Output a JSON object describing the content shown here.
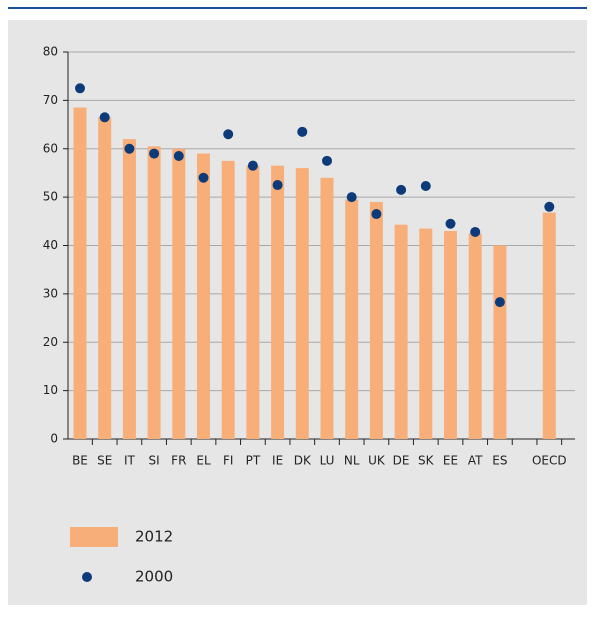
{
  "chart_data": {
    "type": "bar",
    "categories": [
      "BE",
      "SE",
      "IT",
      "SI",
      "FR",
      "EL",
      "FI",
      "PT",
      "IE",
      "DK",
      "LU",
      "NL",
      "UK",
      "DE",
      "SK",
      "EE",
      "AT",
      "ES",
      null,
      "OECD"
    ],
    "series": [
      {
        "name": "2012",
        "color": "#f7ae78",
        "type": "bar",
        "values": [
          68.5,
          66.5,
          62,
          60.5,
          60,
          59,
          57.5,
          56.5,
          56.5,
          56,
          54,
          49.5,
          49,
          44.3,
          43.5,
          43,
          42.5,
          40,
          null,
          46.8
        ]
      },
      {
        "name": "2000",
        "color": "#0d3b7a",
        "type": "scatter",
        "values": [
          72.5,
          66.5,
          60,
          59,
          58.5,
          54,
          63,
          56.5,
          52.5,
          63.5,
          57.5,
          50,
          46.5,
          51.5,
          52.3,
          44.5,
          42.8,
          28.3,
          null,
          48
        ]
      }
    ],
    "ylim": [
      0,
      80
    ],
    "yticks": [
      0,
      10,
      20,
      30,
      40,
      50,
      60,
      70,
      80
    ],
    "grid": true
  }
}
